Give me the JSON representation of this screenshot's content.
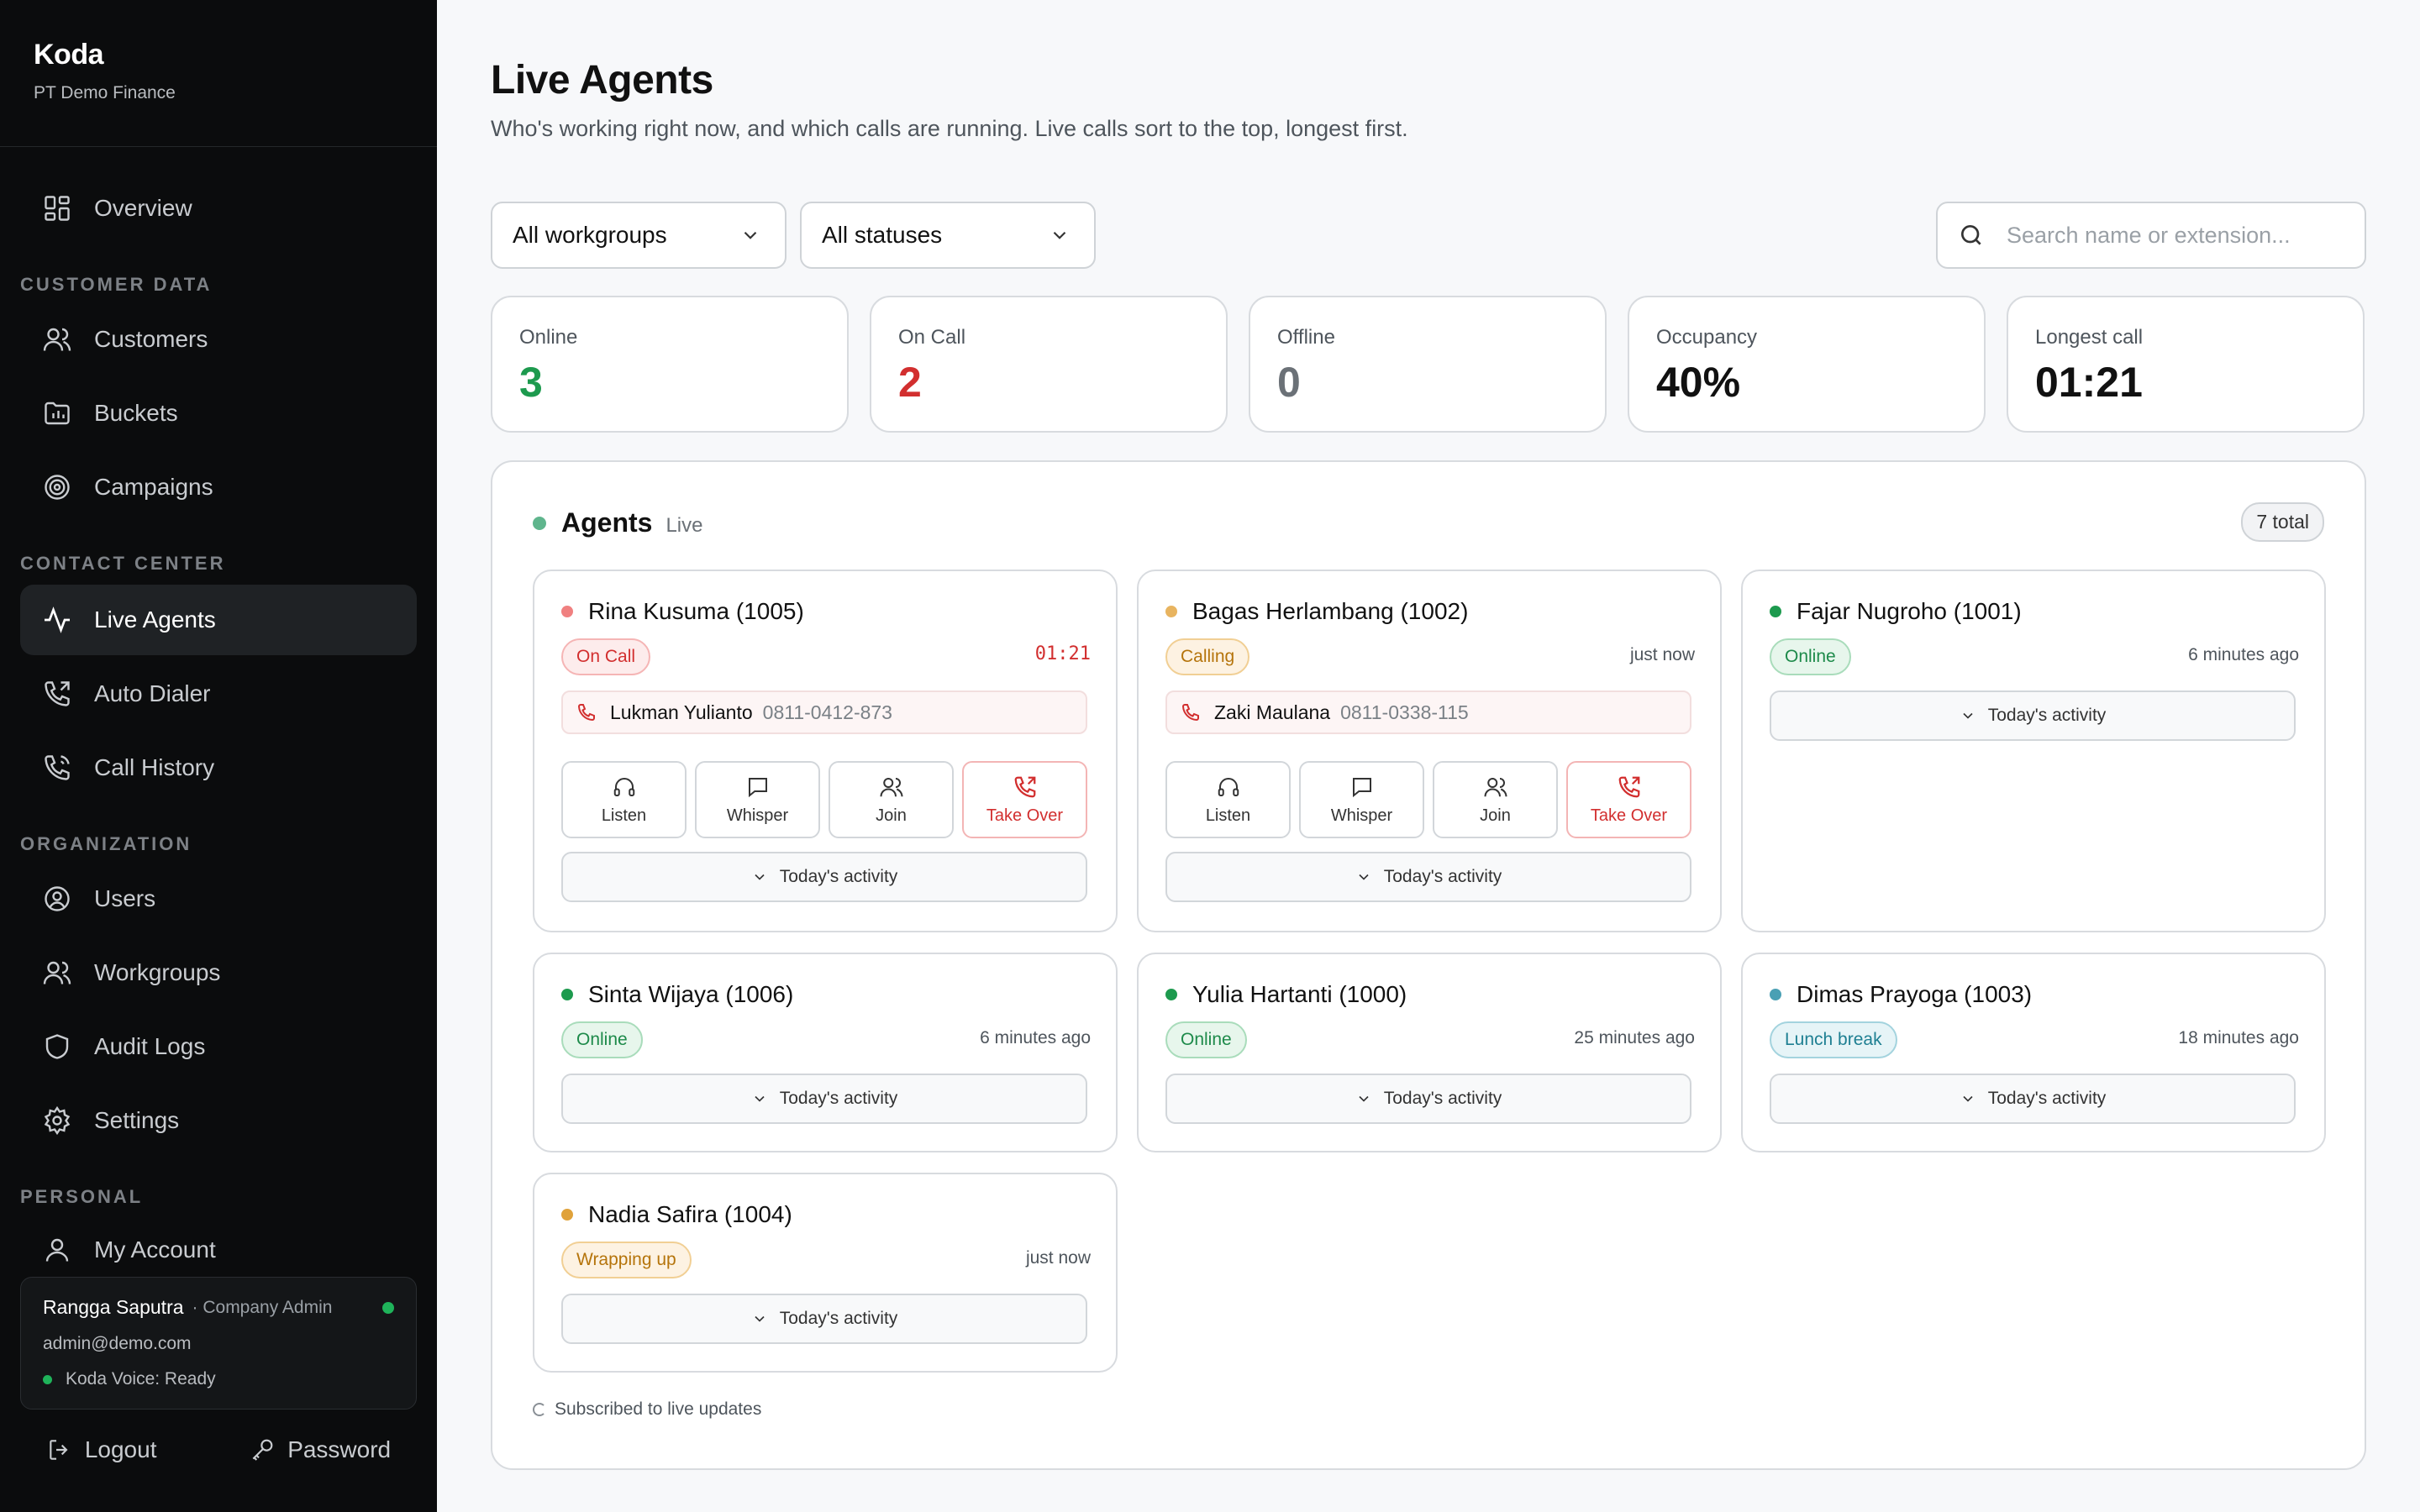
{
  "sidebar": {
    "brand": "Koda",
    "org": "PT Demo Finance",
    "nav_top": [
      {
        "label": "Overview",
        "icon": "grid-icon"
      }
    ],
    "sections": {
      "customer_data": "CUSTOMER DATA",
      "contact_center": "CONTACT CENTER",
      "organization": "ORGANIZATION",
      "personal": "PERSONAL"
    },
    "items": {
      "overview": "Overview",
      "customers": "Customers",
      "buckets": "Buckets",
      "campaigns": "Campaigns",
      "live_agents": "Live Agents",
      "auto_dialer": "Auto Dialer",
      "call_history": "Call History",
      "users": "Users",
      "workgroups": "Workgroups",
      "audit_logs": "Audit Logs",
      "settings": "Settings",
      "my_account": "My Account"
    },
    "user": {
      "name": "Rangga Saputra",
      "role": "· Company Admin",
      "email": "admin@demo.com",
      "voice": "Koda Voice: Ready"
    },
    "logout": "Logout",
    "password": "Password"
  },
  "header": {
    "title": "Live Agents",
    "subtitle": "Who's working right now, and which calls are running. Live calls sort to the top, longest first."
  },
  "filters": {
    "workgroup": "All workgroups",
    "status": "All statuses",
    "search_placeholder": "Search name or extension..."
  },
  "stats": [
    {
      "label": "Online",
      "value": "3",
      "color": "#1d9a4e"
    },
    {
      "label": "On Call",
      "value": "2",
      "color": "#d22f2f"
    },
    {
      "label": "Offline",
      "value": "0",
      "color": "#6b7177"
    },
    {
      "label": "Occupancy",
      "value": "40%",
      "color": "#111111"
    },
    {
      "label": "Longest call",
      "value": "01:21",
      "color": "#111111"
    }
  ],
  "panel": {
    "title": "Agents",
    "live": "Live",
    "total": "7 total",
    "footer": "Subscribed to live updates"
  },
  "actions": {
    "listen": "Listen",
    "whisper": "Whisper",
    "join": "Join",
    "take_over": "Take Over",
    "activity": "Today's activity"
  },
  "agents": [
    {
      "name": "Rina Kusuma (1005)",
      "status": "On Call",
      "time": "01:21",
      "callee": "Lukman Yulianto",
      "callee_number": "0811-0412-873",
      "dot": "#f08080"
    },
    {
      "name": "Bagas Herlambang (1002)",
      "status": "Calling",
      "time": "just now",
      "callee": "Zaki Maulana",
      "callee_number": "0811-0338-115",
      "dot": "#e8b460"
    },
    {
      "name": "Fajar Nugroho (1001)",
      "status": "Online",
      "time": "6 minutes ago",
      "dot": "#1d9a4e"
    },
    {
      "name": "Sinta Wijaya (1006)",
      "status": "Online",
      "time": "6 minutes ago",
      "dot": "#1d9a4e"
    },
    {
      "name": "Yulia Hartanti (1000)",
      "status": "Online",
      "time": "25 minutes ago",
      "dot": "#1d9a4e"
    },
    {
      "name": "Dimas Prayoga (1003)",
      "status": "Lunch break",
      "time": "18 minutes ago",
      "dot": "#4aa0b4"
    },
    {
      "name": "Nadia Safira (1004)",
      "status": "Wrapping up",
      "time": "just now",
      "dot": "#e0a23a"
    }
  ]
}
